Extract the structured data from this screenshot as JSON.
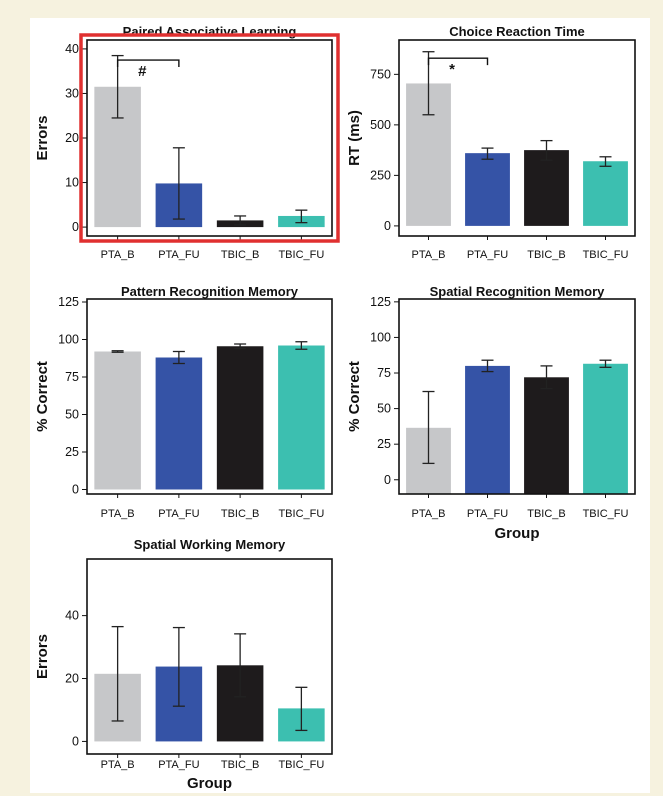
{
  "chart_data": [
    {
      "type": "bar",
      "title": "Paired Associative Learning",
      "ylabel": "Errors",
      "xlabel": "",
      "categories": [
        "PTA_B",
        "PTA_FU",
        "TBIC_B",
        "TBIC_FU"
      ],
      "values": [
        31.5,
        9.8,
        1.5,
        2.5
      ],
      "error_low": [
        24.5,
        1.8,
        0.5,
        1.0
      ],
      "error_high": [
        38.5,
        17.8,
        2.5,
        3.8
      ],
      "ylim": [
        -2,
        42
      ],
      "yticks": [
        "0",
        "10",
        "20",
        "30",
        "40"
      ],
      "ytick_values": [
        0,
        10,
        20,
        30,
        40
      ],
      "annotation": {
        "text": "#",
        "from": 0,
        "to": 1,
        "y": 37.5
      },
      "highlight_color": "#e03030"
    },
    {
      "type": "bar",
      "title": "Choice Reaction Time",
      "ylabel": "RT (ms)",
      "xlabel": "",
      "categories": [
        "PTA_B",
        "PTA_FU",
        "TBIC_B",
        "TBIC_FU"
      ],
      "values": [
        705,
        360,
        375,
        320
      ],
      "error_low": [
        550,
        330,
        325,
        295
      ],
      "error_high": [
        862,
        385,
        422,
        342
      ],
      "ylim": [
        -50,
        920
      ],
      "yticks": [
        "0",
        "250",
        "500",
        "750"
      ],
      "ytick_values": [
        0,
        250,
        500,
        750
      ],
      "annotation": {
        "text": "*",
        "from": 0,
        "to": 1,
        "y": 830
      }
    },
    {
      "type": "bar",
      "title": "Pattern Recognition Memory",
      "ylabel": "% Correct",
      "xlabel": "",
      "categories": [
        "PTA_B",
        "PTA_FU",
        "TBIC_B",
        "TBIC_FU"
      ],
      "values": [
        92,
        88,
        95.5,
        96
      ],
      "error_low": [
        91.5,
        84,
        94,
        93.5
      ],
      "error_high": [
        92.5,
        92,
        97,
        98.5
      ],
      "ylim": [
        -3,
        127
      ],
      "yticks": [
        "0",
        "25",
        "50",
        "75",
        "100",
        "125"
      ],
      "ytick_values": [
        0,
        25,
        50,
        75,
        100,
        125
      ]
    },
    {
      "type": "bar",
      "title": "Spatial Recognition Memory",
      "ylabel": "% Correct",
      "xlabel": "Group",
      "categories": [
        "PTA_B",
        "PTA_FU",
        "TBIC_B",
        "TBIC_FU"
      ],
      "values": [
        36.5,
        80,
        72,
        81.5
      ],
      "error_low": [
        11.5,
        76,
        64,
        79
      ],
      "error_high": [
        62,
        84,
        80,
        84
      ],
      "baseline": -10,
      "ylim": [
        -10,
        127
      ],
      "yticks": [
        "0",
        "25",
        "50",
        "75",
        "100",
        "125"
      ],
      "ytick_values": [
        0,
        25,
        50,
        75,
        100,
        125
      ]
    },
    {
      "type": "bar",
      "title": "Spatial Working Memory",
      "ylabel": "Errors",
      "xlabel": "Group",
      "categories": [
        "PTA_B",
        "PTA_FU",
        "TBIC_B",
        "TBIC_FU"
      ],
      "values": [
        21.5,
        23.8,
        24.2,
        10.5
      ],
      "error_low": [
        6.5,
        11.2,
        14.2,
        3.5
      ],
      "error_high": [
        36.5,
        36.2,
        34.2,
        17.2
      ],
      "ylim": [
        -4,
        58
      ],
      "yticks": [
        "0",
        "20",
        "40"
      ],
      "ytick_values": [
        0,
        20,
        40
      ]
    }
  ],
  "colors": [
    "#c6c7c9",
    "#3553a6",
    "#1e1b1c",
    "#3cbfb0"
  ]
}
